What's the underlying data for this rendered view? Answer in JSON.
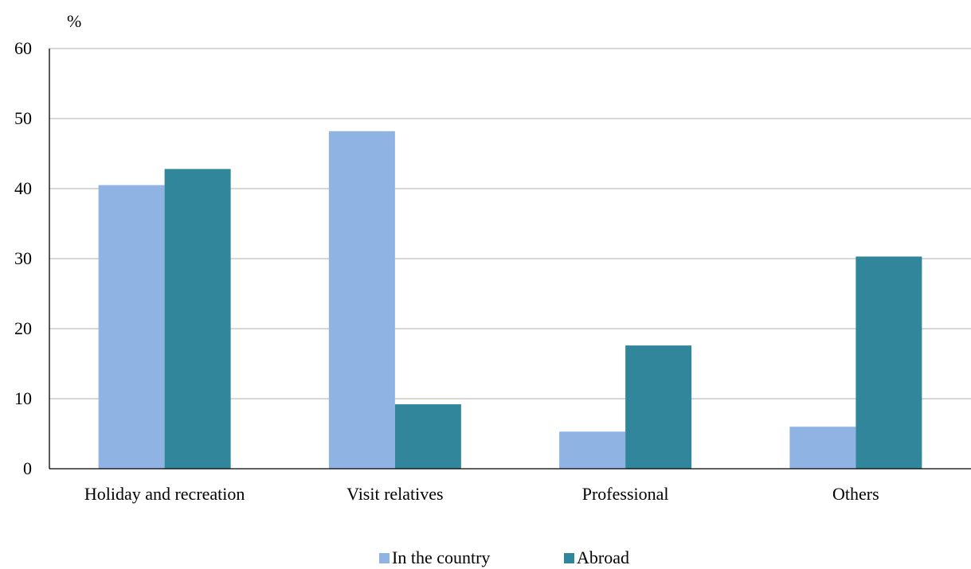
{
  "chart_data": {
    "type": "bar",
    "unit_label": "%",
    "categories": [
      "Holiday and recreation",
      "Visit relatives",
      "Professional",
      "Others"
    ],
    "series": [
      {
        "name": "In the country",
        "values": [
          40.5,
          48.2,
          5.3,
          6.0
        ],
        "color": "#8fb3e3"
      },
      {
        "name": "Abroad",
        "values": [
          42.8,
          9.2,
          17.6,
          30.3
        ],
        "color": "#31869b"
      }
    ],
    "ylim": [
      0,
      60
    ],
    "yticks": [
      "0",
      "10",
      "20",
      "30",
      "40",
      "50",
      "60"
    ],
    "grid": true,
    "legend_position": "bottom-center",
    "grid_color": "#bfbfbf",
    "axis_color": "#000000"
  }
}
